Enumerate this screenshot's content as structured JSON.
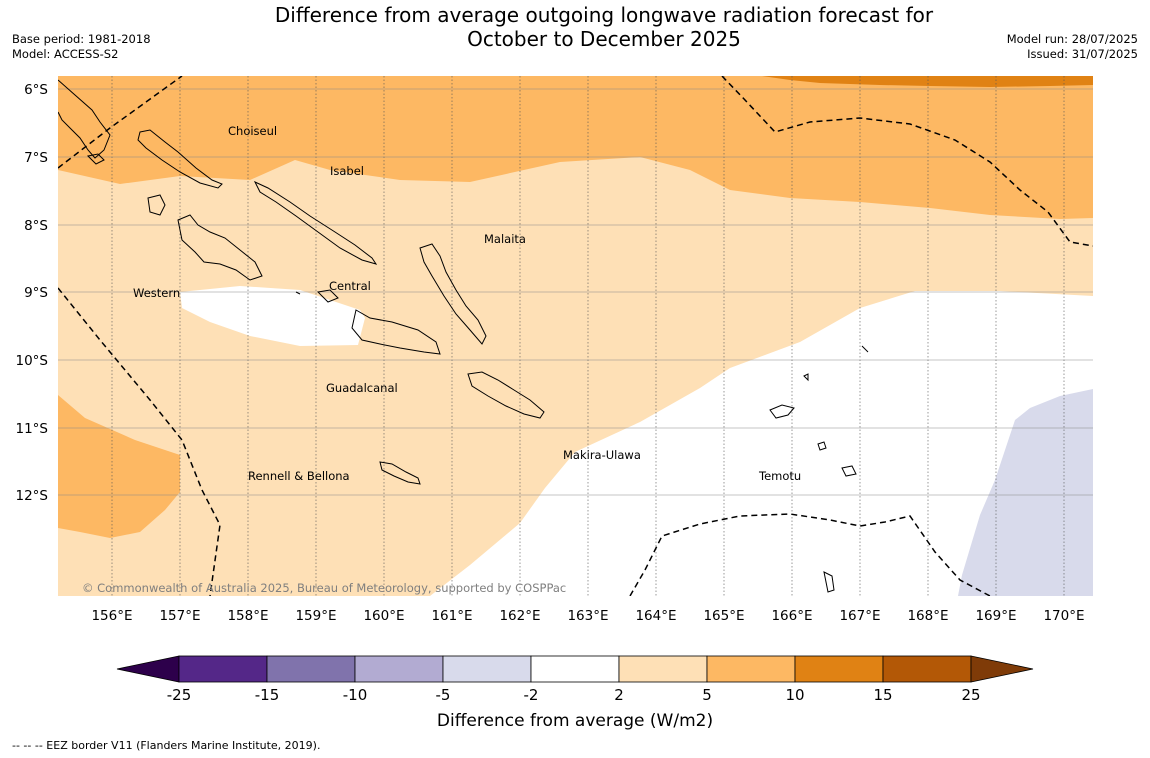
{
  "header": {
    "title_line1": "Difference from average outgoing longwave radiation forecast for",
    "title_line2": "October to December 2025",
    "base_period": "Base period: 1981-2018",
    "model": "Model: ACCESS-S2",
    "model_run": "Model run: 28/07/2025",
    "issued": "Issued: 31/07/2025"
  },
  "map": {
    "lon_ticks": [
      "156°E",
      "157°E",
      "158°E",
      "159°E",
      "160°E",
      "161°E",
      "162°E",
      "163°E",
      "164°E",
      "165°E",
      "166°E",
      "167°E",
      "168°E",
      "169°E",
      "170°E"
    ],
    "lat_ticks": [
      "6°S",
      "7°S",
      "8°S",
      "9°S",
      "10°S",
      "11°S",
      "12°S"
    ],
    "provinces": [
      "Choiseul",
      "Isabel",
      "Malaita",
      "Western",
      "Central",
      "Guadalcanal",
      "Makira-Ulawa",
      "Rennell & Bellona",
      "Temotu"
    ],
    "copyright": "© Commonwealth of Australia 2025, Bureau of Meteorology, supported by COSPPac"
  },
  "colorbar": {
    "ticks": [
      "-25",
      "-15",
      "-10",
      "-5",
      "-2",
      "2",
      "5",
      "10",
      "15",
      "25"
    ],
    "colors": [
      "#2d004b",
      "#542788",
      "#8073ac",
      "#b2abd2",
      "#d8daeb",
      "#ffffff",
      "#fee0b6",
      "#fdb863",
      "#e08214",
      "#b35806",
      "#7f3b08"
    ],
    "label": "Difference from average (W/m2)"
  },
  "footer": {
    "eez_legend": "--  --  -- EEZ border V11 (Flanders Marine Institute, 2019)."
  }
}
